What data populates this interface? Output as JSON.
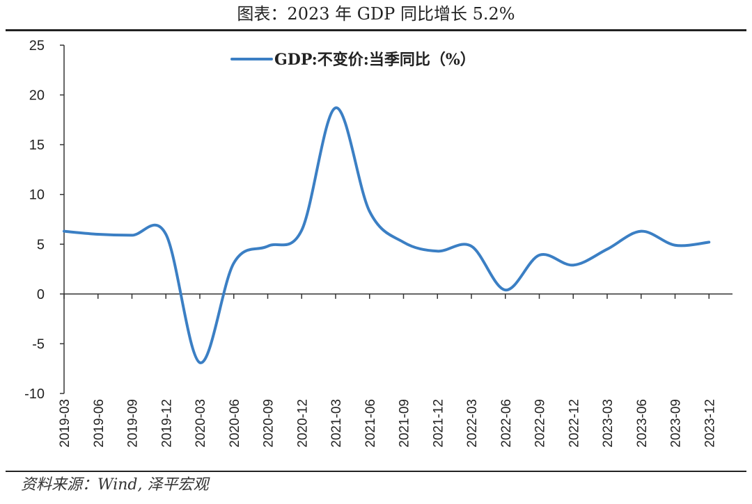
{
  "header": {
    "title": "图表：2023 年 GDP 同比增长 5.2%"
  },
  "footer": {
    "source": "资料来源：Wind, 泽平宏观"
  },
  "colors": {
    "series": "#3b7fc4",
    "axis": "#333333",
    "text": "#222222"
  },
  "chart_data": {
    "type": "line",
    "title": "",
    "xlabel": "",
    "ylabel": "",
    "ylim": [
      -10,
      25
    ],
    "yticks": [
      -10,
      -5,
      0,
      5,
      10,
      15,
      20,
      25
    ],
    "grid": false,
    "legend_position": "top-center",
    "categories": [
      "2019-03",
      "2019-06",
      "2019-09",
      "2019-12",
      "2020-03",
      "2020-06",
      "2020-09",
      "2020-12",
      "2021-03",
      "2021-06",
      "2021-09",
      "2021-12",
      "2022-03",
      "2022-06",
      "2022-09",
      "2022-12",
      "2023-03",
      "2023-06",
      "2023-09",
      "2023-12"
    ],
    "series": [
      {
        "name": "GDP:不变价:当季同比（%）",
        "values": [
          6.3,
          6.0,
          5.9,
          6.0,
          -6.9,
          3.1,
          4.8,
          6.4,
          18.7,
          8.3,
          5.2,
          4.3,
          4.8,
          0.4,
          3.9,
          2.9,
          4.5,
          6.3,
          4.9,
          5.2
        ]
      }
    ]
  }
}
